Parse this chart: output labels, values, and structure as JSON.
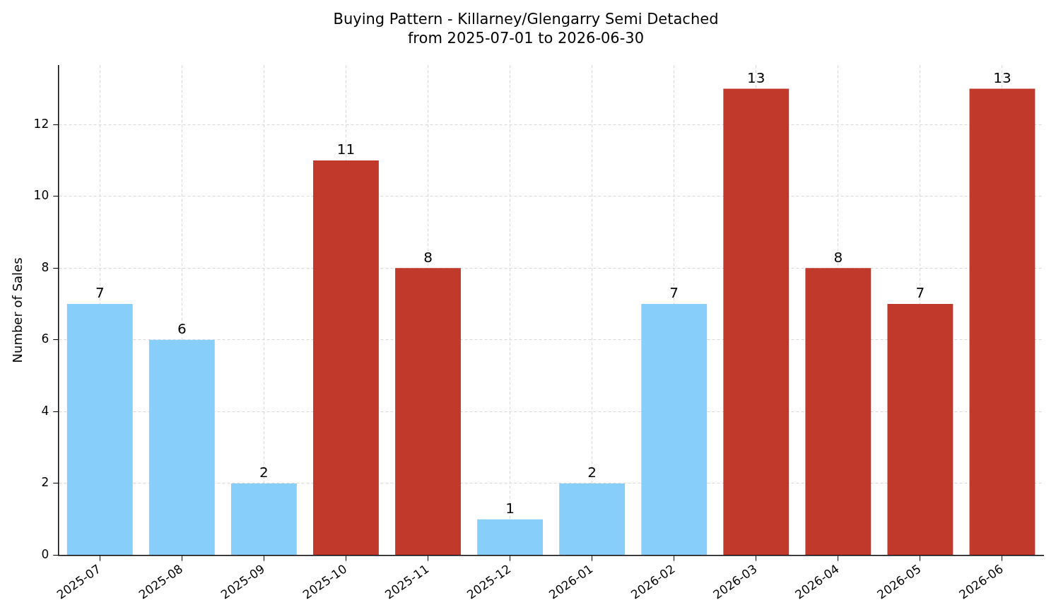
{
  "chart_data": {
    "type": "bar",
    "title": "Buying Pattern - Killarney/Glengarry Semi Detached",
    "subtitle": "from 2025-07-01 to 2026-06-30",
    "ylabel": "Number of Sales",
    "categories": [
      "2025-07",
      "2025-08",
      "2025-09",
      "2025-10",
      "2025-11",
      "2025-12",
      "2026-01",
      "2026-02",
      "2026-03",
      "2026-04",
      "2026-05",
      "2026-06"
    ],
    "values": [
      7,
      6,
      2,
      11,
      8,
      1,
      2,
      7,
      13,
      8,
      7,
      13
    ],
    "colors": [
      "#87cefa",
      "#87cefa",
      "#87cefa",
      "#c0392b",
      "#c0392b",
      "#87cefa",
      "#87cefa",
      "#87cefa",
      "#c0392b",
      "#c0392b",
      "#c0392b",
      "#c0392b"
    ],
    "ylim": [
      0,
      13.65
    ],
    "yticks": [
      0,
      2,
      4,
      6,
      8,
      10,
      12
    ],
    "grid": true,
    "data_labels": true
  }
}
